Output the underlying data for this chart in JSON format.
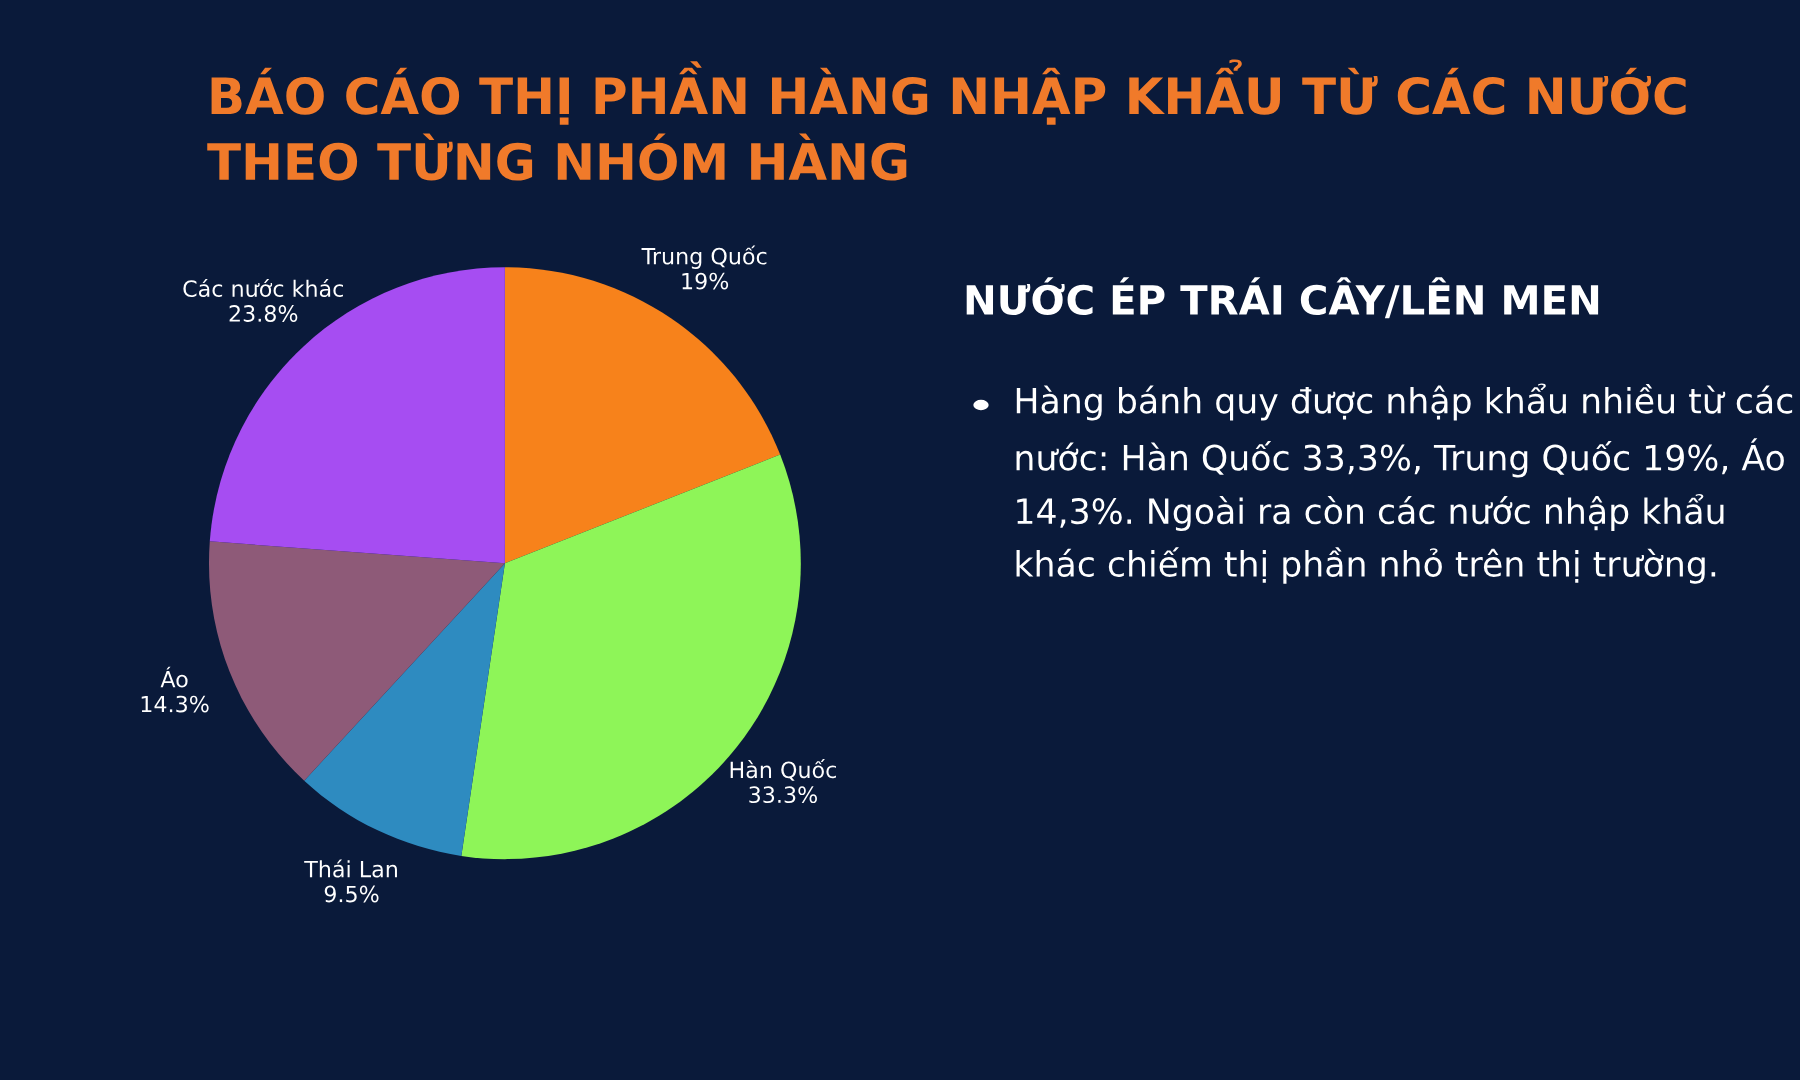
{
  "chart_data": {
    "type": "pie",
    "title": "BÁO CÁO THỊ PHẦN HÀNG NHẬP KHẨU TỪ CÁC NƯỚC THEO TỪNG NHÓM HÀNG",
    "subtitle": "NƯỚC ÉP TRÁI CÂY/LÊN MEN",
    "annotations": [
      "Hàng bánh quy được nhập khẩu nhiều từ các nước: Hàn Quốc 33,3%, Trung Quốc 19%, Áo 14,3%. Ngoài ra còn các nước nhập khẩu khác chiếm thị phần nhỏ trên thị trường."
    ],
    "categories": [
      "Trung Quốc",
      "Hàn Quốc",
      "Thái Lan",
      "Áo",
      "Các nước khác"
    ],
    "values": [
      19,
      33.3,
      9.5,
      14.3,
      23.8
    ],
    "value_labels": [
      "19%",
      "33.3%",
      "9.5%",
      "14.3%",
      "23.8%"
    ],
    "colors": [
      "#f7821b",
      "#8ef558",
      "#2e8bc0",
      "#8e5a78",
      "#a64df2"
    ]
  }
}
